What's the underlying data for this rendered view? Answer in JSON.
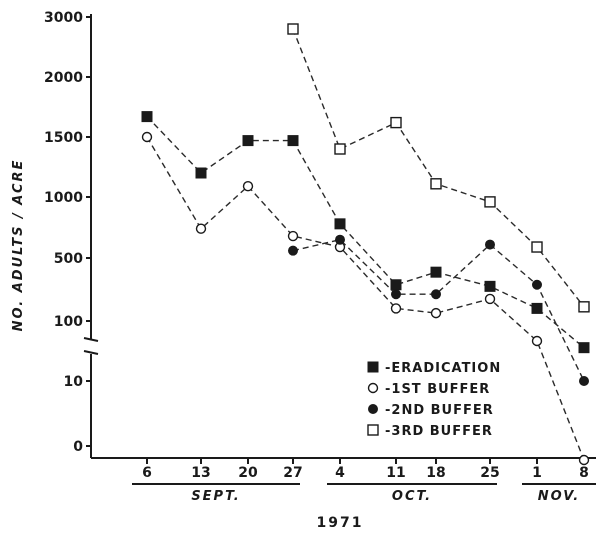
{
  "chart_data": {
    "type": "line",
    "title": "",
    "xlabel": "1971",
    "ylabel": "NO. ADULTS / ACRE",
    "y_scale": "broken (segments 0–10, 10–100 and 100–3000)",
    "y_ticks": [
      "3000",
      "2000",
      "1500",
      "1000",
      "500",
      "100",
      "10",
      "0"
    ],
    "x_ticks": [
      "6",
      "13",
      "20",
      "27",
      "4",
      "11",
      "18",
      "25",
      "1",
      "8"
    ],
    "months": [
      "SEPT.",
      "OCT.",
      "NOV."
    ],
    "x": [
      "6",
      "13",
      "20",
      "27",
      "4",
      "11",
      "18",
      "25",
      "1",
      "8"
    ],
    "legend_position": "lower-right",
    "series": [
      {
        "name": "-ERADICATION",
        "marker": "filled-square",
        "values": [
          1670,
          1200,
          1470,
          1470,
          780,
          330,
          410,
          320,
          180,
          60
        ]
      },
      {
        "name": "-1ST BUFFER",
        "marker": "open-circle",
        "values": [
          1500,
          740,
          1090,
          680,
          590,
          180,
          150,
          240,
          70,
          -10
        ]
      },
      {
        "name": "-2ND BUFFER",
        "marker": "filled-circle",
        "values": [
          null,
          null,
          null,
          560,
          650,
          270,
          270,
          610,
          330,
          10
        ]
      },
      {
        "name": "-3RD BUFFER",
        "marker": "open-square",
        "values": [
          null,
          null,
          null,
          2800,
          1400,
          1620,
          1110,
          960,
          590,
          190
        ]
      }
    ]
  }
}
